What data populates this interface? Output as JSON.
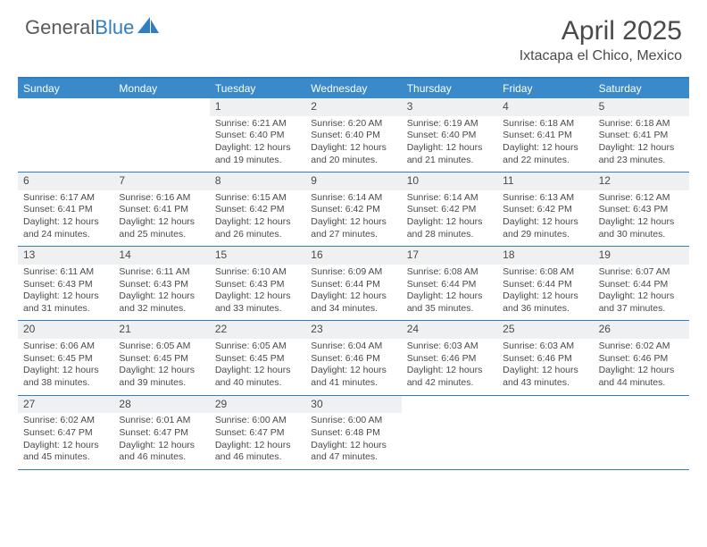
{
  "logo": {
    "word1": "General",
    "word2": "Blue"
  },
  "title": "April 2025",
  "location": "Ixtacapa el Chico, Mexico",
  "weekdays": [
    "Sunday",
    "Monday",
    "Tuesday",
    "Wednesday",
    "Thursday",
    "Friday",
    "Saturday"
  ],
  "colors": {
    "header_bg": "#3a8ac9",
    "border": "#2f7fc2",
    "daynum_bg": "#eef0f1",
    "text": "#4a4a4a"
  },
  "weeks": [
    [
      {
        "day": "",
        "sunrise": "",
        "sunset": "",
        "daylight": ""
      },
      {
        "day": "",
        "sunrise": "",
        "sunset": "",
        "daylight": ""
      },
      {
        "day": "1",
        "sunrise": "Sunrise: 6:21 AM",
        "sunset": "Sunset: 6:40 PM",
        "daylight": "Daylight: 12 hours and 19 minutes."
      },
      {
        "day": "2",
        "sunrise": "Sunrise: 6:20 AM",
        "sunset": "Sunset: 6:40 PM",
        "daylight": "Daylight: 12 hours and 20 minutes."
      },
      {
        "day": "3",
        "sunrise": "Sunrise: 6:19 AM",
        "sunset": "Sunset: 6:40 PM",
        "daylight": "Daylight: 12 hours and 21 minutes."
      },
      {
        "day": "4",
        "sunrise": "Sunrise: 6:18 AM",
        "sunset": "Sunset: 6:41 PM",
        "daylight": "Daylight: 12 hours and 22 minutes."
      },
      {
        "day": "5",
        "sunrise": "Sunrise: 6:18 AM",
        "sunset": "Sunset: 6:41 PM",
        "daylight": "Daylight: 12 hours and 23 minutes."
      }
    ],
    [
      {
        "day": "6",
        "sunrise": "Sunrise: 6:17 AM",
        "sunset": "Sunset: 6:41 PM",
        "daylight": "Daylight: 12 hours and 24 minutes."
      },
      {
        "day": "7",
        "sunrise": "Sunrise: 6:16 AM",
        "sunset": "Sunset: 6:41 PM",
        "daylight": "Daylight: 12 hours and 25 minutes."
      },
      {
        "day": "8",
        "sunrise": "Sunrise: 6:15 AM",
        "sunset": "Sunset: 6:42 PM",
        "daylight": "Daylight: 12 hours and 26 minutes."
      },
      {
        "day": "9",
        "sunrise": "Sunrise: 6:14 AM",
        "sunset": "Sunset: 6:42 PM",
        "daylight": "Daylight: 12 hours and 27 minutes."
      },
      {
        "day": "10",
        "sunrise": "Sunrise: 6:14 AM",
        "sunset": "Sunset: 6:42 PM",
        "daylight": "Daylight: 12 hours and 28 minutes."
      },
      {
        "day": "11",
        "sunrise": "Sunrise: 6:13 AM",
        "sunset": "Sunset: 6:42 PM",
        "daylight": "Daylight: 12 hours and 29 minutes."
      },
      {
        "day": "12",
        "sunrise": "Sunrise: 6:12 AM",
        "sunset": "Sunset: 6:43 PM",
        "daylight": "Daylight: 12 hours and 30 minutes."
      }
    ],
    [
      {
        "day": "13",
        "sunrise": "Sunrise: 6:11 AM",
        "sunset": "Sunset: 6:43 PM",
        "daylight": "Daylight: 12 hours and 31 minutes."
      },
      {
        "day": "14",
        "sunrise": "Sunrise: 6:11 AM",
        "sunset": "Sunset: 6:43 PM",
        "daylight": "Daylight: 12 hours and 32 minutes."
      },
      {
        "day": "15",
        "sunrise": "Sunrise: 6:10 AM",
        "sunset": "Sunset: 6:43 PM",
        "daylight": "Daylight: 12 hours and 33 minutes."
      },
      {
        "day": "16",
        "sunrise": "Sunrise: 6:09 AM",
        "sunset": "Sunset: 6:44 PM",
        "daylight": "Daylight: 12 hours and 34 minutes."
      },
      {
        "day": "17",
        "sunrise": "Sunrise: 6:08 AM",
        "sunset": "Sunset: 6:44 PM",
        "daylight": "Daylight: 12 hours and 35 minutes."
      },
      {
        "day": "18",
        "sunrise": "Sunrise: 6:08 AM",
        "sunset": "Sunset: 6:44 PM",
        "daylight": "Daylight: 12 hours and 36 minutes."
      },
      {
        "day": "19",
        "sunrise": "Sunrise: 6:07 AM",
        "sunset": "Sunset: 6:44 PM",
        "daylight": "Daylight: 12 hours and 37 minutes."
      }
    ],
    [
      {
        "day": "20",
        "sunrise": "Sunrise: 6:06 AM",
        "sunset": "Sunset: 6:45 PM",
        "daylight": "Daylight: 12 hours and 38 minutes."
      },
      {
        "day": "21",
        "sunrise": "Sunrise: 6:05 AM",
        "sunset": "Sunset: 6:45 PM",
        "daylight": "Daylight: 12 hours and 39 minutes."
      },
      {
        "day": "22",
        "sunrise": "Sunrise: 6:05 AM",
        "sunset": "Sunset: 6:45 PM",
        "daylight": "Daylight: 12 hours and 40 minutes."
      },
      {
        "day": "23",
        "sunrise": "Sunrise: 6:04 AM",
        "sunset": "Sunset: 6:46 PM",
        "daylight": "Daylight: 12 hours and 41 minutes."
      },
      {
        "day": "24",
        "sunrise": "Sunrise: 6:03 AM",
        "sunset": "Sunset: 6:46 PM",
        "daylight": "Daylight: 12 hours and 42 minutes."
      },
      {
        "day": "25",
        "sunrise": "Sunrise: 6:03 AM",
        "sunset": "Sunset: 6:46 PM",
        "daylight": "Daylight: 12 hours and 43 minutes."
      },
      {
        "day": "26",
        "sunrise": "Sunrise: 6:02 AM",
        "sunset": "Sunset: 6:46 PM",
        "daylight": "Daylight: 12 hours and 44 minutes."
      }
    ],
    [
      {
        "day": "27",
        "sunrise": "Sunrise: 6:02 AM",
        "sunset": "Sunset: 6:47 PM",
        "daylight": "Daylight: 12 hours and 45 minutes."
      },
      {
        "day": "28",
        "sunrise": "Sunrise: 6:01 AM",
        "sunset": "Sunset: 6:47 PM",
        "daylight": "Daylight: 12 hours and 46 minutes."
      },
      {
        "day": "29",
        "sunrise": "Sunrise: 6:00 AM",
        "sunset": "Sunset: 6:47 PM",
        "daylight": "Daylight: 12 hours and 46 minutes."
      },
      {
        "day": "30",
        "sunrise": "Sunrise: 6:00 AM",
        "sunset": "Sunset: 6:48 PM",
        "daylight": "Daylight: 12 hours and 47 minutes."
      },
      {
        "day": "",
        "sunrise": "",
        "sunset": "",
        "daylight": ""
      },
      {
        "day": "",
        "sunrise": "",
        "sunset": "",
        "daylight": ""
      },
      {
        "day": "",
        "sunrise": "",
        "sunset": "",
        "daylight": ""
      }
    ]
  ]
}
